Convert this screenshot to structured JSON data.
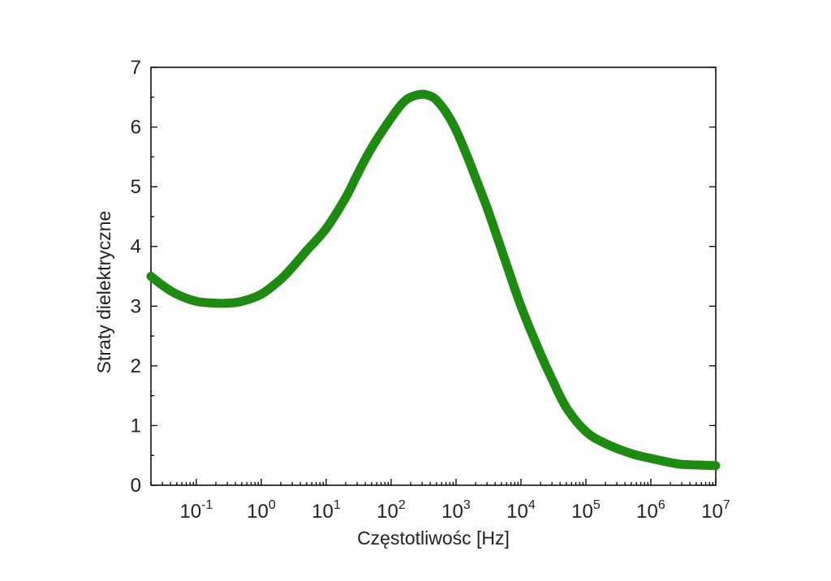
{
  "chart_data": {
    "type": "line",
    "title": "",
    "xlabel": "Częstotliwośc [Hz]",
    "ylabel": "Straty dielektryczne",
    "xscale": "log",
    "xlim": [
      0.02,
      10000000
    ],
    "ylim": [
      0,
      7
    ],
    "grid": false,
    "legend": "none",
    "x_ticks": [
      {
        "base": "10",
        "exp": "-1",
        "value": 0.1
      },
      {
        "base": "10",
        "exp": "0",
        "value": 1
      },
      {
        "base": "10",
        "exp": "1",
        "value": 10
      },
      {
        "base": "10",
        "exp": "2",
        "value": 100
      },
      {
        "base": "10",
        "exp": "3",
        "value": 1000
      },
      {
        "base": "10",
        "exp": "4",
        "value": 10000
      },
      {
        "base": "10",
        "exp": "5",
        "value": 100000
      },
      {
        "base": "10",
        "exp": "6",
        "value": 1000000
      },
      {
        "base": "10",
        "exp": "7",
        "value": 10000000
      }
    ],
    "y_ticks": [
      "0",
      "1",
      "2",
      "3",
      "4",
      "5",
      "6",
      "7"
    ],
    "series": [
      {
        "color": "#1e8a12",
        "x": [
          0.02,
          0.03,
          0.05,
          0.1,
          0.2,
          0.3,
          0.5,
          1,
          2,
          3,
          5,
          10,
          20,
          30,
          50,
          100,
          150,
          200,
          300,
          400,
          500,
          700,
          1000,
          1500,
          2000,
          3000,
          5000,
          10000,
          20000,
          30000,
          50000,
          100000,
          200000,
          500000,
          1000000,
          2000000,
          3000000,
          5000000,
          10000000
        ],
        "y": [
          3.5,
          3.35,
          3.2,
          3.08,
          3.05,
          3.05,
          3.08,
          3.2,
          3.45,
          3.65,
          3.93,
          4.3,
          4.82,
          5.2,
          5.65,
          6.15,
          6.4,
          6.5,
          6.55,
          6.52,
          6.45,
          6.25,
          5.95,
          5.5,
          5.15,
          4.65,
          3.95,
          3.0,
          2.2,
          1.78,
          1.3,
          0.9,
          0.7,
          0.53,
          0.45,
          0.38,
          0.35,
          0.34,
          0.33
        ]
      }
    ]
  }
}
